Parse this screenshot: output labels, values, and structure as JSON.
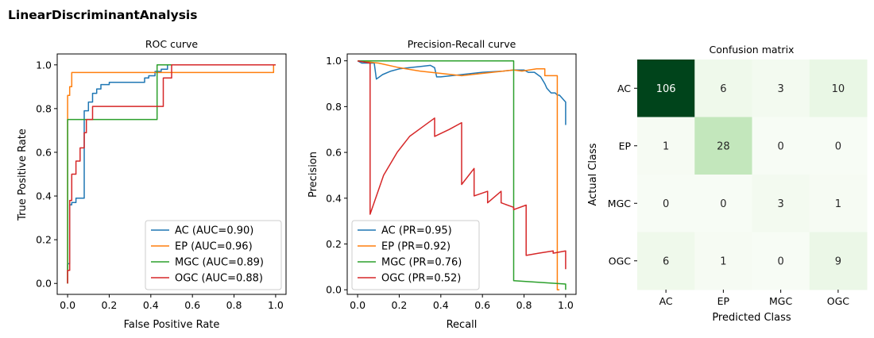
{
  "figure_title": "LinearDiscriminantAnalysis",
  "chart_data": [
    {
      "type": "line",
      "title": "ROC curve",
      "xlabel": "False Positive Rate",
      "ylabel": "True Positive Rate",
      "xlim": [
        -0.05,
        1.05
      ],
      "ylim": [
        -0.05,
        1.05
      ],
      "xticks": [
        0.0,
        0.2,
        0.4,
        0.6,
        0.8,
        1.0
      ],
      "yticks": [
        0.0,
        0.2,
        0.4,
        0.6,
        0.8,
        1.0
      ],
      "xtick_labels": [
        "0.0",
        "0.2",
        "0.4",
        "0.6",
        "0.8",
        "1.0"
      ],
      "ytick_labels": [
        "0.0",
        "0.2",
        "0.4",
        "0.6",
        "0.8",
        "1.0"
      ],
      "legend_position": "lower-right",
      "series": [
        {
          "name": "AC (AUC=0.90)",
          "color": "#1f77b4",
          "x": [
            0.0,
            0.0,
            0.01,
            0.01,
            0.02,
            0.02,
            0.04,
            0.04,
            0.08,
            0.08,
            0.1,
            0.1,
            0.12,
            0.12,
            0.14,
            0.14,
            0.16,
            0.16,
            0.18,
            0.18,
            0.2,
            0.2,
            0.24,
            0.24,
            0.37,
            0.37,
            0.39,
            0.39,
            0.42,
            0.42,
            0.45,
            0.45,
            0.48,
            0.48,
            1.0
          ],
          "y": [
            0.0,
            0.09,
            0.09,
            0.36,
            0.36,
            0.37,
            0.37,
            0.39,
            0.39,
            0.79,
            0.79,
            0.83,
            0.83,
            0.87,
            0.87,
            0.89,
            0.89,
            0.91,
            0.91,
            0.91,
            0.91,
            0.92,
            0.92,
            0.92,
            0.92,
            0.94,
            0.94,
            0.95,
            0.95,
            0.97,
            0.97,
            0.98,
            0.98,
            1.0,
            1.0
          ]
        },
        {
          "name": "EP (AUC=0.96)",
          "color": "#ff7f0e",
          "x": [
            0.0,
            0.0,
            0.01,
            0.01,
            0.02,
            0.02,
            0.99,
            0.99,
            1.0
          ],
          "y": [
            0.0,
            0.86,
            0.86,
            0.9,
            0.9,
            0.965,
            0.965,
            1.0,
            1.0
          ]
        },
        {
          "name": "MGC (AUC=0.89)",
          "color": "#2ca02c",
          "x": [
            0.0,
            0.0,
            0.43,
            0.43,
            1.0
          ],
          "y": [
            0.0,
            0.75,
            0.75,
            1.0,
            1.0
          ]
        },
        {
          "name": "OGC (AUC=0.88)",
          "color": "#d62728",
          "x": [
            0.0,
            0.0,
            0.01,
            0.01,
            0.02,
            0.02,
            0.04,
            0.04,
            0.06,
            0.06,
            0.08,
            0.08,
            0.09,
            0.09,
            0.1,
            0.1,
            0.12,
            0.12,
            0.46,
            0.46,
            0.5,
            0.5,
            1.0
          ],
          "y": [
            0.0,
            0.06,
            0.06,
            0.38,
            0.38,
            0.5,
            0.5,
            0.56,
            0.56,
            0.62,
            0.62,
            0.69,
            0.69,
            0.75,
            0.75,
            0.75,
            0.75,
            0.81,
            0.81,
            0.94,
            0.94,
            1.0,
            1.0
          ]
        }
      ]
    },
    {
      "type": "line",
      "title": "Precision-Recall curve",
      "xlabel": "Recall",
      "ylabel": "Precision",
      "xlim": [
        -0.05,
        1.05
      ],
      "ylim": [
        -0.02,
        1.03
      ],
      "xticks": [
        0.0,
        0.2,
        0.4,
        0.6,
        0.8,
        1.0
      ],
      "yticks": [
        0.0,
        0.2,
        0.4,
        0.6,
        0.8,
        1.0
      ],
      "xtick_labels": [
        "0.0",
        "0.2",
        "0.4",
        "0.6",
        "0.8",
        "1.0"
      ],
      "ytick_labels": [
        "0.0",
        "0.2",
        "0.4",
        "0.6",
        "0.8",
        "1.0"
      ],
      "legend_position": "lower-left",
      "series": [
        {
          "name": "AC (PR=0.95)",
          "color": "#1f77b4",
          "x": [
            0.0,
            0.02,
            0.05,
            0.08,
            0.09,
            0.12,
            0.16,
            0.2,
            0.25,
            0.3,
            0.35,
            0.37,
            0.38,
            0.4,
            0.5,
            0.6,
            0.7,
            0.75,
            0.8,
            0.82,
            0.85,
            0.88,
            0.9,
            0.91,
            0.93,
            0.95,
            0.96,
            0.97,
            0.98,
            0.99,
            1.0,
            1.0
          ],
          "y": [
            1.0,
            0.99,
            0.99,
            0.99,
            0.92,
            0.94,
            0.955,
            0.965,
            0.97,
            0.975,
            0.98,
            0.97,
            0.93,
            0.93,
            0.94,
            0.95,
            0.955,
            0.96,
            0.96,
            0.95,
            0.95,
            0.93,
            0.9,
            0.88,
            0.86,
            0.86,
            0.85,
            0.85,
            0.84,
            0.83,
            0.82,
            0.72
          ]
        },
        {
          "name": "EP (PR=0.92)",
          "color": "#ff7f0e",
          "x": [
            0.0,
            0.05,
            0.1,
            0.2,
            0.3,
            0.4,
            0.5,
            0.6,
            0.7,
            0.75,
            0.79,
            0.86,
            0.9,
            0.9,
            0.96,
            0.96,
            0.97
          ],
          "y": [
            1.0,
            0.995,
            0.99,
            0.97,
            0.955,
            0.945,
            0.935,
            0.945,
            0.955,
            0.96,
            0.955,
            0.965,
            0.965,
            0.935,
            0.935,
            0.0,
            0.0
          ]
        },
        {
          "name": "MGC (PR=0.76)",
          "color": "#2ca02c",
          "x": [
            0.0,
            0.75,
            0.75,
            1.0,
            1.0
          ],
          "y": [
            1.0,
            1.0,
            0.04,
            0.025,
            0.0
          ]
        },
        {
          "name": "OGC (PR=0.52)",
          "color": "#d62728",
          "x": [
            0.0,
            0.06,
            0.06,
            0.125,
            0.125,
            0.19,
            0.25,
            0.31,
            0.37,
            0.37,
            0.44,
            0.5,
            0.5,
            0.56,
            0.56,
            0.625,
            0.625,
            0.69,
            0.69,
            0.75,
            0.75,
            0.81,
            0.81,
            0.87,
            0.94,
            0.94,
            1.0,
            1.0
          ],
          "y": [
            1.0,
            0.99,
            0.33,
            0.5,
            0.5,
            0.6,
            0.67,
            0.71,
            0.75,
            0.67,
            0.7,
            0.73,
            0.46,
            0.53,
            0.41,
            0.43,
            0.38,
            0.43,
            0.38,
            0.36,
            0.35,
            0.37,
            0.15,
            0.16,
            0.17,
            0.16,
            0.17,
            0.09
          ]
        }
      ]
    },
    {
      "type": "heatmap",
      "title": "Confusion matrix",
      "xlabel": "Predicted Class",
      "ylabel": "Actual Class",
      "x_categories": [
        "AC",
        "EP",
        "MGC",
        "OGC"
      ],
      "y_categories": [
        "AC",
        "EP",
        "MGC",
        "OGC"
      ],
      "values": [
        [
          106,
          6,
          3,
          10
        ],
        [
          1,
          28,
          0,
          0
        ],
        [
          0,
          0,
          3,
          1
        ],
        [
          6,
          1,
          0,
          9
        ]
      ],
      "cell_labels": [
        [
          "106",
          "6",
          "3",
          "10"
        ],
        [
          "1",
          "28",
          "0",
          "0"
        ],
        [
          "0",
          "0",
          "3",
          "1"
        ],
        [
          "6",
          "1",
          "0",
          "9"
        ]
      ],
      "colormap": "Greens",
      "color_low": "#f7fcf5",
      "color_high": "#00441b"
    }
  ]
}
